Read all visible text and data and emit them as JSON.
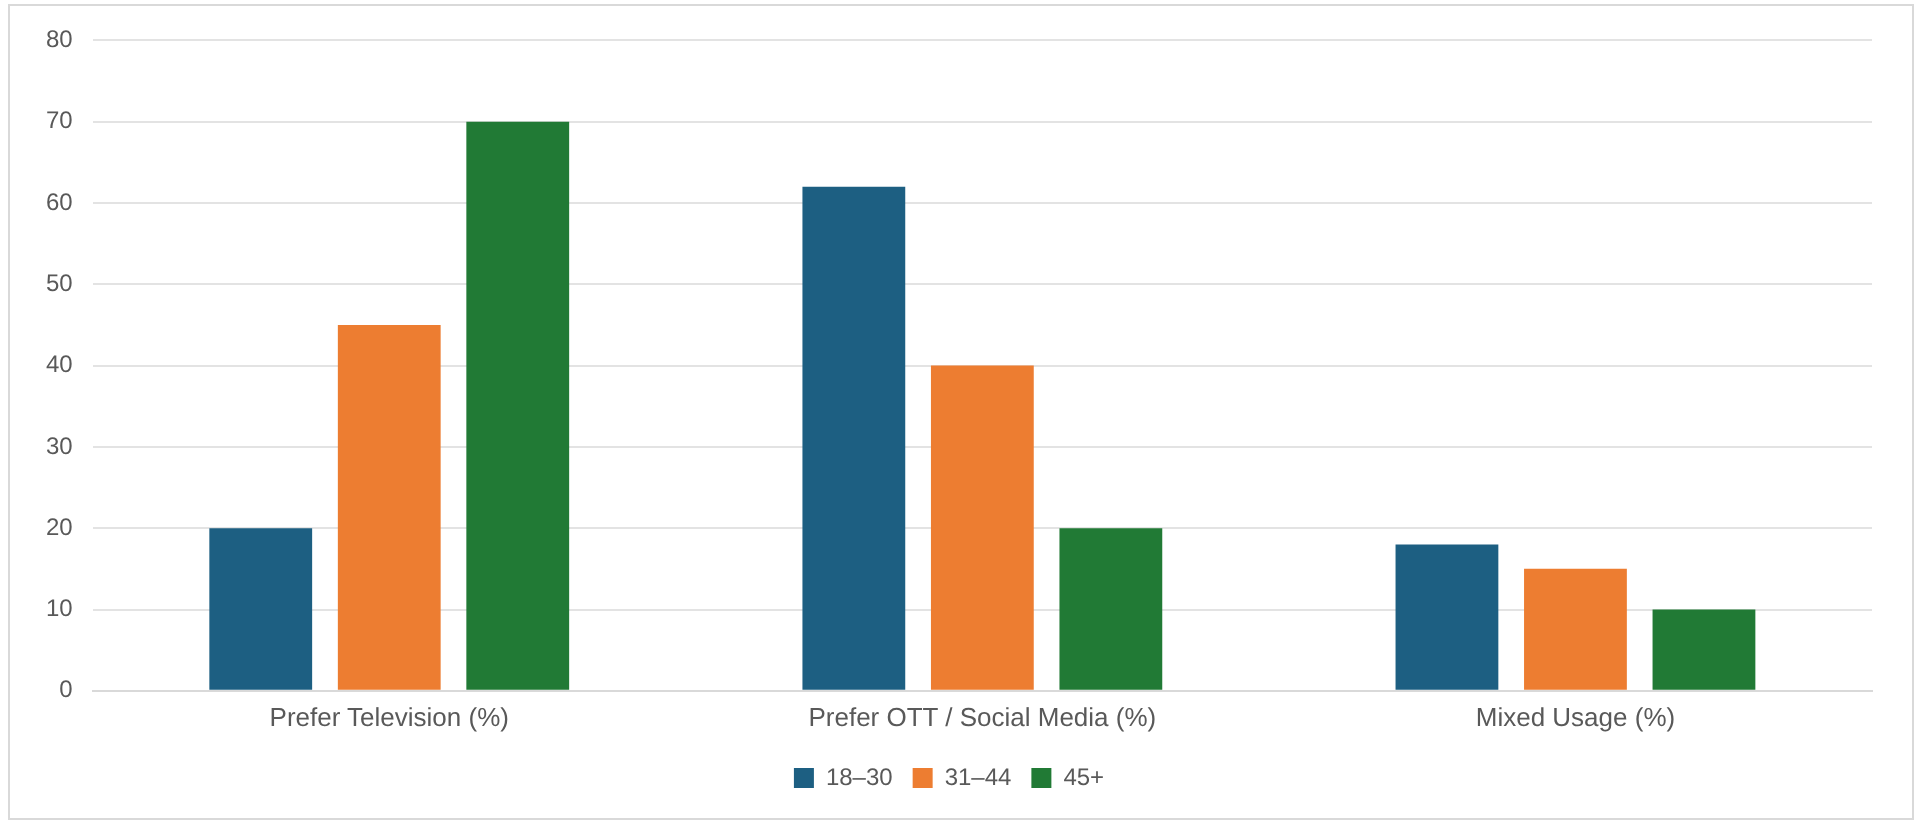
{
  "chart_data": {
    "type": "bar",
    "categories": [
      "Prefer Television (%)",
      "Prefer OTT / Social Media (%)",
      "Mixed Usage (%)"
    ],
    "series": [
      {
        "name": "18–30",
        "color": "#1d5f82",
        "values": [
          20,
          62,
          18
        ]
      },
      {
        "name": "31–44",
        "color": "#ed7d31",
        "values": [
          45,
          40,
          15
        ]
      },
      {
        "name": "45+",
        "color": "#217a35",
        "values": [
          70,
          20,
          10
        ]
      }
    ],
    "ylim": [
      0,
      80
    ],
    "yticks": [
      0,
      10,
      20,
      30,
      40,
      50,
      60,
      70,
      80
    ],
    "grid": "y",
    "legend": "bottom"
  }
}
